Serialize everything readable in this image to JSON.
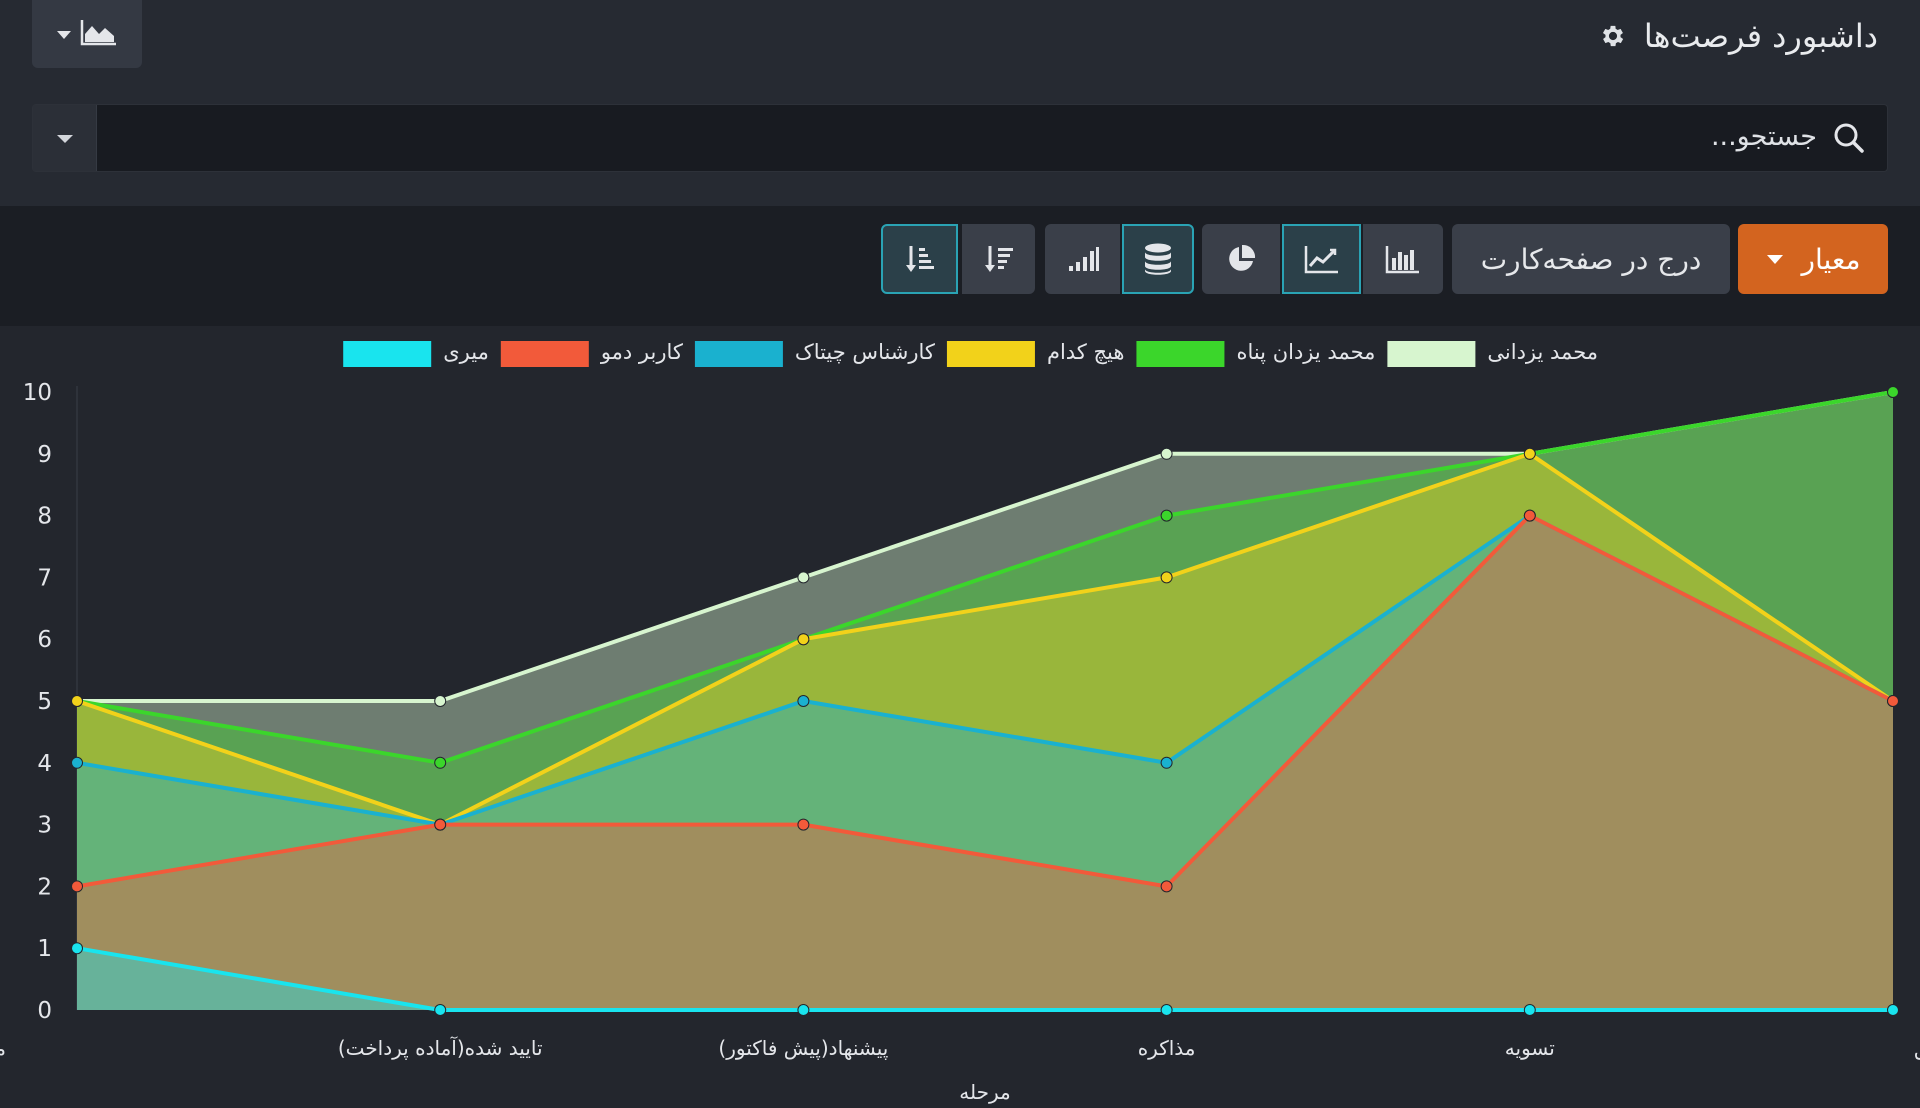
{
  "header": {
    "title": "داشبورد فرصت‌ها",
    "gear_icon": "gear-icon",
    "view_icon": "area-chart-icon"
  },
  "search": {
    "placeholder": "جستجو...",
    "icon": "search-icon"
  },
  "toolbar": {
    "metric_label": "معیار",
    "insert_label": "درج در صفحه‌کارت",
    "buttons": [
      {
        "icon": "bar-chart-icon",
        "active": false
      },
      {
        "icon": "line-chart-icon",
        "active": true
      },
      {
        "icon": "pie-chart-icon",
        "active": false
      },
      {
        "icon": "stacked-database-icon",
        "active": true
      },
      {
        "icon": "ascending-bars-icon",
        "active": false
      },
      {
        "icon": "sort-descending-icon",
        "active": false
      },
      {
        "icon": "sort-ascending-icon",
        "active": true
      }
    ],
    "metric_color": "#d3641f",
    "active_border_color": "#2aa3b4"
  },
  "chart_data": {
    "type": "area",
    "stacked": false,
    "categories": [
      "مراجعه حضوری",
      "تایید شده(آماده پرداخت)",
      "پیشنهاد(پیش فاکتور)",
      "مذاکره",
      "تسویه",
      "موفق"
    ],
    "xlabel": "مرحله",
    "ylabel": "",
    "ylim": [
      0,
      10
    ],
    "yticks": [
      0,
      1,
      2,
      3,
      4,
      5,
      6,
      7,
      8,
      9,
      10
    ],
    "grid": false,
    "legend_position": "top",
    "series": [
      {
        "name": "محمد یزدانی",
        "color": "#d7f5cf",
        "values": [
          5,
          5,
          7,
          9,
          9,
          10
        ]
      },
      {
        "name": "محمد یزدان پناه",
        "color": "#3bd62b",
        "values": [
          5,
          4,
          6,
          8,
          9,
          10
        ]
      },
      {
        "name": "هیچ کدام",
        "color": "#f2d21a",
        "values": [
          5,
          3,
          6,
          7,
          9,
          5
        ]
      },
      {
        "name": "کارشناس چیتاک",
        "color": "#1ab1cf",
        "values": [
          4,
          3,
          5,
          4,
          8,
          5
        ]
      },
      {
        "name": "کاربر دمو",
        "color": "#f25a3a",
        "values": [
          2,
          3,
          3,
          2,
          8,
          5
        ]
      },
      {
        "name": "میری",
        "color": "#19e4ee",
        "values": [
          1,
          0,
          0,
          0,
          0,
          0
        ]
      }
    ]
  }
}
